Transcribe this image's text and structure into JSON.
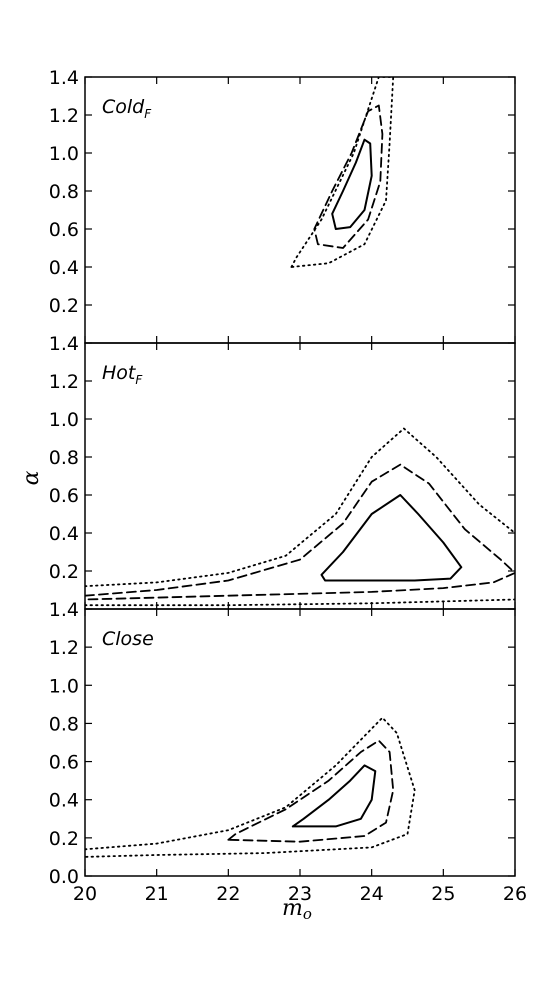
{
  "chart_data": {
    "type": "contour",
    "xlabel": "m",
    "xlabel_sub": "o",
    "ylabel": "α",
    "xlim": [
      20,
      26
    ],
    "x_ticks": [
      "20",
      "21",
      "22",
      "23",
      "24",
      "25",
      "26"
    ],
    "grid": false,
    "panels": [
      {
        "label": "Cold",
        "label_sub": "F",
        "ylim": [
          0.0,
          1.4
        ],
        "y_ticks": [
          "0.2",
          "0.4",
          "0.6",
          "0.8",
          "1.0",
          "1.2",
          "1.4"
        ],
        "contours": [
          {
            "level": "inner",
            "style": "solid",
            "points": [
              [
                23.5,
                0.6
              ],
              [
                23.45,
                0.68
              ],
              [
                23.6,
                0.8
              ],
              [
                23.78,
                0.95
              ],
              [
                23.9,
                1.07
              ],
              [
                23.98,
                1.05
              ],
              [
                24.0,
                0.88
              ],
              [
                23.9,
                0.7
              ],
              [
                23.7,
                0.61
              ],
              [
                23.5,
                0.6
              ]
            ]
          },
          {
            "level": "middle",
            "style": "dashed",
            "points": [
              [
                23.25,
                0.52
              ],
              [
                23.2,
                0.6
              ],
              [
                23.45,
                0.8
              ],
              [
                23.72,
                1.0
              ],
              [
                23.95,
                1.22
              ],
              [
                24.1,
                1.25
              ],
              [
                24.15,
                1.1
              ],
              [
                24.12,
                0.85
              ],
              [
                23.95,
                0.65
              ],
              [
                23.6,
                0.5
              ],
              [
                23.25,
                0.52
              ]
            ]
          },
          {
            "level": "outer",
            "style": "dotted",
            "points": [
              [
                22.88,
                0.4
              ],
              [
                22.95,
                0.45
              ],
              [
                23.3,
                0.65
              ],
              [
                23.75,
                1.0
              ],
              [
                24.1,
                1.4
              ],
              [
                24.3,
                1.4
              ],
              [
                24.25,
                1.05
              ],
              [
                24.2,
                0.75
              ],
              [
                23.9,
                0.52
              ],
              [
                23.4,
                0.42
              ],
              [
                22.88,
                0.4
              ]
            ]
          }
        ]
      },
      {
        "label": "Hot",
        "label_sub": "F",
        "ylim": [
          0.0,
          1.4
        ],
        "y_ticks": [
          "0.2",
          "0.4",
          "0.6",
          "0.8",
          "1.0",
          "1.2",
          "1.4"
        ],
        "contours": [
          {
            "level": "inner",
            "style": "solid",
            "points": [
              [
                23.35,
                0.15
              ],
              [
                23.3,
                0.18
              ],
              [
                23.6,
                0.3
              ],
              [
                24.0,
                0.5
              ],
              [
                24.4,
                0.6
              ],
              [
                24.65,
                0.5
              ],
              [
                25.0,
                0.35
              ],
              [
                25.25,
                0.22
              ],
              [
                25.1,
                0.16
              ],
              [
                24.6,
                0.15
              ],
              [
                23.35,
                0.15
              ]
            ]
          },
          {
            "level": "middle",
            "style": "dashed",
            "points": [
              [
                20.0,
                0.07
              ],
              [
                21.0,
                0.1
              ],
              [
                22.0,
                0.15
              ],
              [
                23.0,
                0.26
              ],
              [
                23.6,
                0.45
              ],
              [
                24.0,
                0.67
              ],
              [
                24.4,
                0.76
              ],
              [
                24.8,
                0.66
              ],
              [
                25.3,
                0.42
              ],
              [
                25.8,
                0.26
              ],
              [
                26.0,
                0.19
              ],
              [
                25.7,
                0.14
              ],
              [
                25.0,
                0.11
              ],
              [
                24.0,
                0.09
              ],
              [
                22.0,
                0.07
              ],
              [
                20.0,
                0.05
              ]
            ]
          },
          {
            "level": "outer",
            "style": "dotted",
            "points": [
              [
                20.0,
                0.12
              ],
              [
                21.0,
                0.14
              ],
              [
                22.0,
                0.19
              ],
              [
                22.8,
                0.28
              ],
              [
                23.5,
                0.5
              ],
              [
                24.0,
                0.8
              ],
              [
                24.45,
                0.95
              ],
              [
                24.9,
                0.8
              ],
              [
                25.5,
                0.55
              ],
              [
                26.0,
                0.4
              ]
            ]
          },
          {
            "level": "outer",
            "style": "dotted",
            "points": [
              [
                20.0,
                0.02
              ],
              [
                22.0,
                0.02
              ],
              [
                24.0,
                0.03
              ],
              [
                25.0,
                0.04
              ],
              [
                26.0,
                0.05
              ]
            ]
          }
        ]
      },
      {
        "label": "Close",
        "label_sub": "",
        "ylim": [
          0.0,
          1.4
        ],
        "y_ticks": [
          "0.0",
          "0.2",
          "0.4",
          "0.6",
          "0.8",
          "1.0",
          "1.2",
          "1.4"
        ],
        "contours": [
          {
            "level": "inner",
            "style": "solid",
            "points": [
              [
                22.9,
                0.26
              ],
              [
                23.05,
                0.3
              ],
              [
                23.4,
                0.4
              ],
              [
                23.7,
                0.5
              ],
              [
                23.9,
                0.58
              ],
              [
                24.05,
                0.55
              ],
              [
                24.0,
                0.4
              ],
              [
                23.85,
                0.3
              ],
              [
                23.5,
                0.26
              ],
              [
                22.9,
                0.26
              ]
            ]
          },
          {
            "level": "middle",
            "style": "dashed",
            "points": [
              [
                22.0,
                0.19
              ],
              [
                22.1,
                0.22
              ],
              [
                22.8,
                0.35
              ],
              [
                23.4,
                0.5
              ],
              [
                23.85,
                0.65
              ],
              [
                24.1,
                0.71
              ],
              [
                24.25,
                0.65
              ],
              [
                24.3,
                0.45
              ],
              [
                24.2,
                0.28
              ],
              [
                23.9,
                0.21
              ],
              [
                23.0,
                0.18
              ],
              [
                22.0,
                0.19
              ]
            ]
          },
          {
            "level": "outer",
            "style": "dotted",
            "points": [
              [
                20.0,
                0.14
              ],
              [
                21.0,
                0.17
              ],
              [
                22.0,
                0.24
              ],
              [
                22.8,
                0.36
              ],
              [
                23.5,
                0.58
              ],
              [
                24.15,
                0.83
              ],
              [
                24.35,
                0.75
              ],
              [
                24.6,
                0.45
              ],
              [
                24.5,
                0.22
              ],
              [
                24.0,
                0.15
              ],
              [
                22.5,
                0.12
              ],
              [
                21.0,
                0.11
              ],
              [
                20.0,
                0.1
              ]
            ]
          }
        ]
      }
    ]
  }
}
